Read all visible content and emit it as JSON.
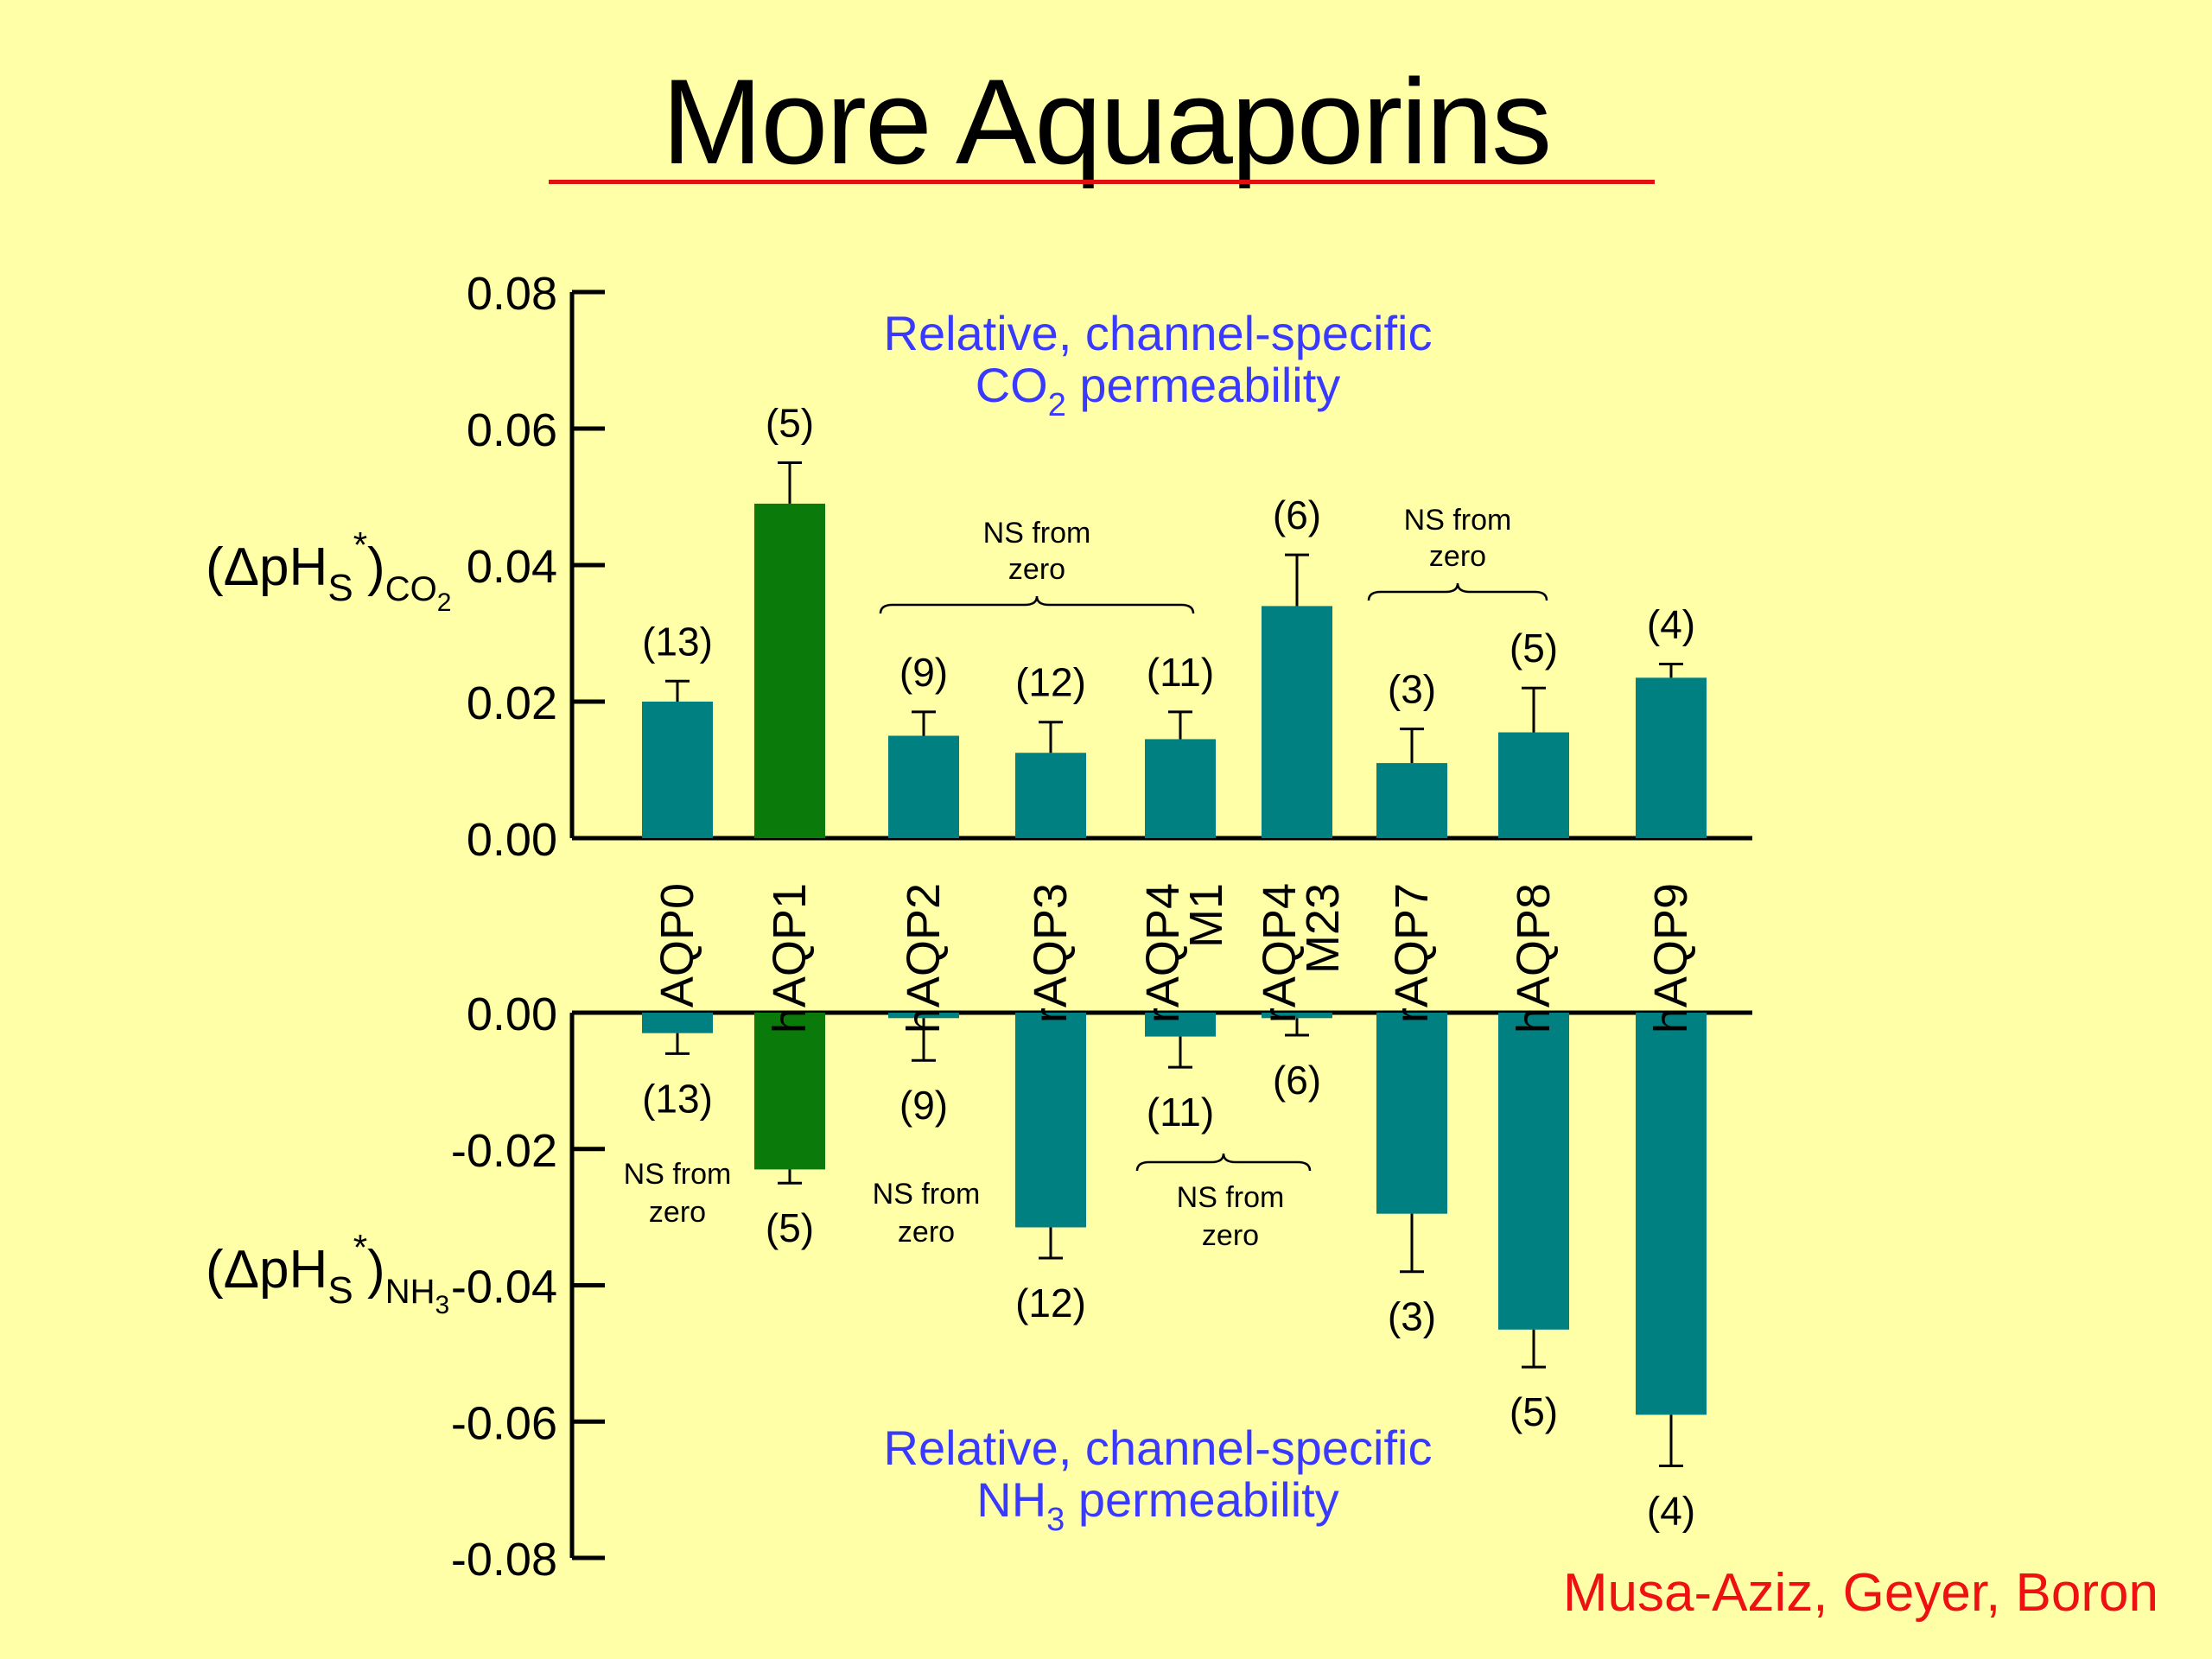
{
  "title": "More Aquaporins",
  "credit": "Musa-Aziz, Geyer, Boron",
  "colors": {
    "background": "#ffffa8",
    "teal": "#008080",
    "green": "#0a7a0a",
    "blue_text": "#3a3aff",
    "red": "#ee1111"
  },
  "chart_data": [
    {
      "type": "bar",
      "ylabel": {
        "main": "(ΔpH",
        "sub1": "S",
        "sup": "*",
        "close": ")",
        "sub2": "CO",
        "sub3": "2"
      },
      "ylim": [
        0,
        0.08
      ],
      "yticks": [
        "0.08",
        "0.06",
        "0.04",
        "0.02",
        "0.00"
      ],
      "annotation": {
        "line1": "Relative, channel-specific",
        "line2_main": "CO",
        "line2_sub": "2",
        "line2_rest": " permeability"
      },
      "categories": [
        "AQP0",
        "hAQP1",
        "hAQP2",
        "rAQP3",
        "rAQP4 M1",
        "rAQP4 M23",
        "rAQP7",
        "hAQP8",
        "hAQP9"
      ],
      "values": [
        0.02,
        0.049,
        0.015,
        0.0125,
        0.0145,
        0.034,
        0.011,
        0.0155,
        0.0235
      ],
      "errors": [
        0.003,
        0.006,
        0.0035,
        0.0045,
        0.004,
        0.0075,
        0.005,
        0.0065,
        0.002
      ],
      "n_labels": [
        "(13)",
        "(5)",
        "(9)",
        "(12)",
        "(11)",
        "(6)",
        "(3)",
        "(5)",
        "(4)"
      ],
      "bar_colors": [
        "teal",
        "green",
        "teal",
        "teal",
        "teal",
        "teal",
        "teal",
        "teal",
        "teal"
      ],
      "ns_groups": [
        {
          "from": 2,
          "to": 4,
          "line1": "NS from",
          "line2": "zero"
        },
        {
          "from": 6,
          "to": 7,
          "line1": "NS from",
          "line2": "zero"
        }
      ]
    },
    {
      "type": "bar",
      "ylabel": {
        "main": "(ΔpH",
        "sub1": "S",
        "sup": "*",
        "close": ")",
        "sub2": "NH",
        "sub3": "3"
      },
      "ylim": [
        -0.08,
        0
      ],
      "yticks": [
        "0.00",
        "-0.02",
        "-0.04",
        "-0.06",
        "-0.08"
      ],
      "annotation": {
        "line1": "Relative, channel-specific",
        "line2_main": "NH",
        "line2_sub": "3",
        "line2_rest": " permeability"
      },
      "categories": [
        "AQP0",
        "hAQP1",
        "hAQP2",
        "rAQP3",
        "rAQP4 M1",
        "rAQP4 M23",
        "rAQP7",
        "hAQP8",
        "hAQP9"
      ],
      "values": [
        -0.003,
        -0.023,
        -0.0008,
        -0.0315,
        -0.0035,
        -0.0008,
        -0.0295,
        -0.0465,
        -0.059
      ],
      "errors": [
        0.003,
        0.002,
        0.0062,
        0.0045,
        0.0045,
        0.0025,
        0.0085,
        0.0055,
        0.0075
      ],
      "n_labels": [
        "(13)",
        "(5)",
        "(9)",
        "(12)",
        "(11)",
        "(6)",
        "(3)",
        "(5)",
        "(4)"
      ],
      "bar_colors": [
        "teal",
        "green",
        "teal",
        "teal",
        "teal",
        "teal",
        "teal",
        "teal",
        "teal"
      ],
      "ns_labels": [
        {
          "at": 0,
          "line1": "NS from",
          "line2": "zero"
        },
        {
          "at": 2,
          "line1": "NS from",
          "line2": "zero"
        }
      ],
      "ns_groups": [
        {
          "from": 4,
          "to": 5,
          "line1": "NS from",
          "line2": "zero"
        }
      ]
    }
  ]
}
